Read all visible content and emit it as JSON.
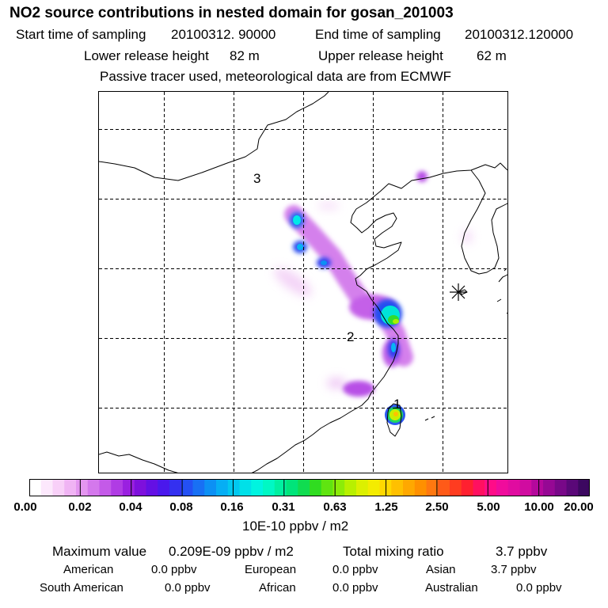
{
  "title": "NO2 source contributions in nested domain for gosan_201003",
  "header": {
    "start_label": "Start time of sampling",
    "start_value": "20100312. 90000",
    "end_label": "End time of sampling",
    "end_value": "20100312.120000",
    "lower_label": "Lower release height",
    "lower_value": "82 m",
    "upper_label": "Upper release height",
    "upper_value": "62 m",
    "note": "Passive tracer used, meteorological data are from ECMWF"
  },
  "map": {
    "region_labels": [
      "1",
      "2",
      "3"
    ],
    "receptor_marker": "asterisk-icon"
  },
  "colorbar": {
    "ticks": [
      "0.00",
      "0.02",
      "0.04",
      "0.08",
      "0.16",
      "0.31",
      "0.63",
      "1.25",
      "2.50",
      "5.00",
      "10.00",
      "20.00"
    ],
    "unit": "10E-10 ppbv / m2",
    "colors": [
      "#ffffff",
      "#fce8fc",
      "#f8d0f8",
      "#f0b4f4",
      "#e496f0",
      "#d478ec",
      "#c45ae8",
      "#b03ce4",
      "#9a20e0",
      "#7e10dc",
      "#6410e4",
      "#4a18ec",
      "#3430f0",
      "#2450f4",
      "#1870f4",
      "#0c90f4",
      "#06aef4",
      "#02c8f0",
      "#00e0e8",
      "#00f4e0",
      "#00f8c4",
      "#00f0a0",
      "#00e47a",
      "#10dc50",
      "#30dc20",
      "#60e410",
      "#8cec08",
      "#b8f000",
      "#dcf000",
      "#f4ec00",
      "#ffd800",
      "#ffc000",
      "#ffa800",
      "#ff9000",
      "#ff7810",
      "#ff5a18",
      "#ff3c20",
      "#ff2030",
      "#ff1060",
      "#ff0c88",
      "#f00c9c",
      "#e00ca0",
      "#d00ca0",
      "#b4089c",
      "#960894",
      "#780888",
      "#5a0878",
      "#3c0860"
    ]
  },
  "footer": {
    "max_label": "Maximum value",
    "max_value": "0.209E-09 ppbv / m2",
    "total_label": "Total mixing ratio",
    "total_value": "3.7 ppbv",
    "regions": [
      {
        "name": "American",
        "value": "0.0 ppbv"
      },
      {
        "name": "European",
        "value": "0.0 ppbv"
      },
      {
        "name": "Asian",
        "value": "3.7 ppbv"
      },
      {
        "name": "South American",
        "value": "0.0 ppbv"
      },
      {
        "name": "African",
        "value": "0.0 ppbv"
      },
      {
        "name": "Australian",
        "value": "0.0 ppbv"
      }
    ]
  }
}
